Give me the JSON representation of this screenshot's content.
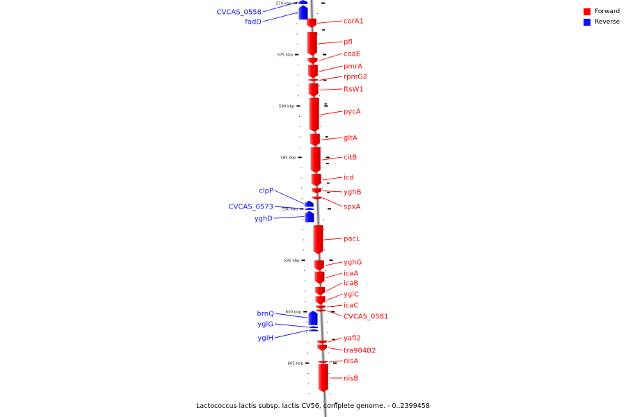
{
  "caption": "Lactococcus lactis subsp. lactis CV56, complete genome. - 0..2399458",
  "legend": [
    {
      "label": "Forward",
      "color": "#ff0000"
    },
    {
      "label": "Reverse",
      "color": "#1010ff"
    }
  ],
  "ticks": [
    {
      "label": "570 kbp",
      "pos": 570
    },
    {
      "label": "575 kbp",
      "pos": 575
    },
    {
      "label": "580 kbp",
      "pos": 580
    },
    {
      "label": "585 kbp",
      "pos": 585
    },
    {
      "label": "590 kbp",
      "pos": 590
    },
    {
      "label": "595 kbp",
      "pos": 595
    },
    {
      "label": "600 kbp",
      "pos": 600
    },
    {
      "label": "605 kbp",
      "pos": 605
    }
  ],
  "forward_genes": [
    {
      "name": "corA1",
      "start": 571.5,
      "end": 572.4
    },
    {
      "name": "pfl",
      "start": 572.8,
      "end": 575.1
    },
    {
      "name": "coaE",
      "start": 575.3,
      "end": 575.9
    },
    {
      "name": "pmrA",
      "start": 576.0,
      "end": 577.3
    },
    {
      "name": "rpmG2",
      "start": 577.4,
      "end": 577.6
    },
    {
      "name": "ftsW1",
      "start": 577.8,
      "end": 579.1
    },
    {
      "name": "pycA",
      "start": 579.2,
      "end": 582.5
    },
    {
      "name": "gltA",
      "start": 582.7,
      "end": 583.9
    },
    {
      "name": "citB",
      "start": 584.0,
      "end": 586.5
    },
    {
      "name": "icd",
      "start": 586.6,
      "end": 587.8
    },
    {
      "name": "yghB",
      "start": 588.0,
      "end": 588.5
    },
    {
      "name": "spxA",
      "start": 588.8,
      "end": 589.1
    },
    {
      "name": "pacL",
      "start": 591.6,
      "end": 594.4
    },
    {
      "name": "yghG",
      "start": 595.0,
      "end": 596.0
    },
    {
      "name": "icaA",
      "start": 596.1,
      "end": 597.3
    },
    {
      "name": "icaB",
      "start": 597.6,
      "end": 598.4
    },
    {
      "name": "ygiC",
      "start": 598.5,
      "end": 599.3
    },
    {
      "name": "icaC",
      "start": 599.4,
      "end": 599.7
    },
    {
      "name": "CVCAS_0581",
      "start": 599.8,
      "end": 600.0
    },
    {
      "name": "yafI2",
      "start": 602.8,
      "end": 603.1
    },
    {
      "name": "tra904B2",
      "start": 603.2,
      "end": 603.8
    },
    {
      "name": "nisA",
      "start": 604.8,
      "end": 605.0
    },
    {
      "name": "nisB",
      "start": 605.1,
      "end": 607.8
    }
  ],
  "reverse_genes": [
    {
      "name": "CVCAS_0558",
      "start": 569.7,
      "end": 570.1
    },
    {
      "name": "fadD",
      "start": 570.2,
      "end": 571.6
    },
    {
      "name": "clpP",
      "start": 589.2,
      "end": 589.8
    },
    {
      "name": "CVCAS_0573",
      "start": 589.9,
      "end": 590.1
    },
    {
      "name": "yghD",
      "start": 590.2,
      "end": 591.3
    },
    {
      "name": "brnQ",
      "start": 599.9,
      "end": 601.3
    },
    {
      "name": "ygiG",
      "start": 601.4,
      "end": 601.6
    },
    {
      "name": "ygiH",
      "start": 601.7,
      "end": 601.9
    }
  ]
}
